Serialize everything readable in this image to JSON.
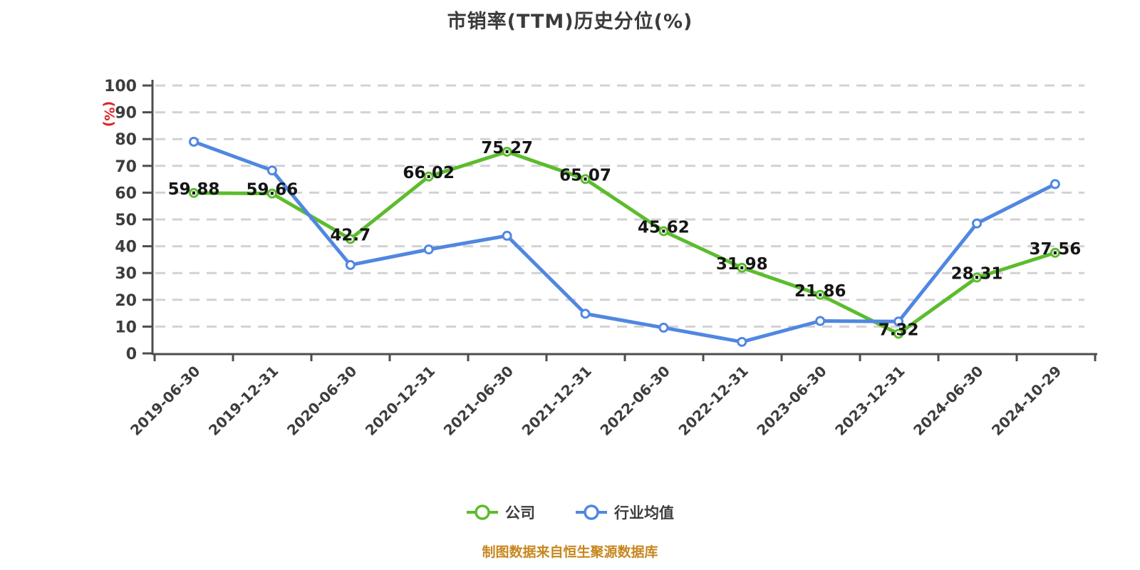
{
  "page": {
    "title": "市销率(TTM)历史分位(%)",
    "footer": "制图数据来自恒生聚源数据库"
  },
  "legend": {
    "items": [
      "公司",
      "行业均值"
    ]
  },
  "chart_data": {
    "type": "line",
    "title": "市销率(TTM)历史分位(%)",
    "xlabel": "",
    "ylabel": "(%)",
    "ylim": [
      0,
      100
    ],
    "yticks": [
      0,
      10,
      20,
      30,
      40,
      50,
      60,
      70,
      80,
      90,
      100
    ],
    "grid": "horizontal-dashed",
    "legend_position": "bottom",
    "marker": "hollow-circle",
    "categories": [
      "2019-06-30",
      "2019-12-31",
      "2020-06-30",
      "2020-12-31",
      "2021-06-30",
      "2021-12-31",
      "2022-06-30",
      "2022-12-31",
      "2023-06-30",
      "2023-12-31",
      "2024-06-30",
      "2024-10-29"
    ],
    "series": [
      {
        "name": "公司",
        "color": "#5cbc2d",
        "show_labels": true,
        "values": [
          59.88,
          59.66,
          42.7,
          66.02,
          75.27,
          65.07,
          45.62,
          31.98,
          21.86,
          7.32,
          28.31,
          37.56
        ],
        "labels": [
          "59.88",
          "59.66",
          "42.7",
          "66.02",
          "75.27",
          "65.07",
          "45.62",
          "31.98",
          "21.86",
          "7.32",
          "28.31",
          "37.56"
        ]
      },
      {
        "name": "行业均值",
        "color": "#5087e1",
        "show_labels": false,
        "values": [
          79,
          68.3,
          33,
          38.8,
          43.9,
          14.8,
          9.6,
          4.3,
          12.1,
          11.9,
          48.5,
          63.2
        ],
        "labels": []
      }
    ],
    "colors": {
      "title_text": "#3b3b3b",
      "axis": "#4d4d4d",
      "tick_text": "#3d3d3d",
      "grid": "#d2d2d2",
      "data_label": "#151515",
      "y_unit_red": "#e02121",
      "footer_orange": "#c7871e",
      "marker_fill": "#ffffff"
    }
  }
}
